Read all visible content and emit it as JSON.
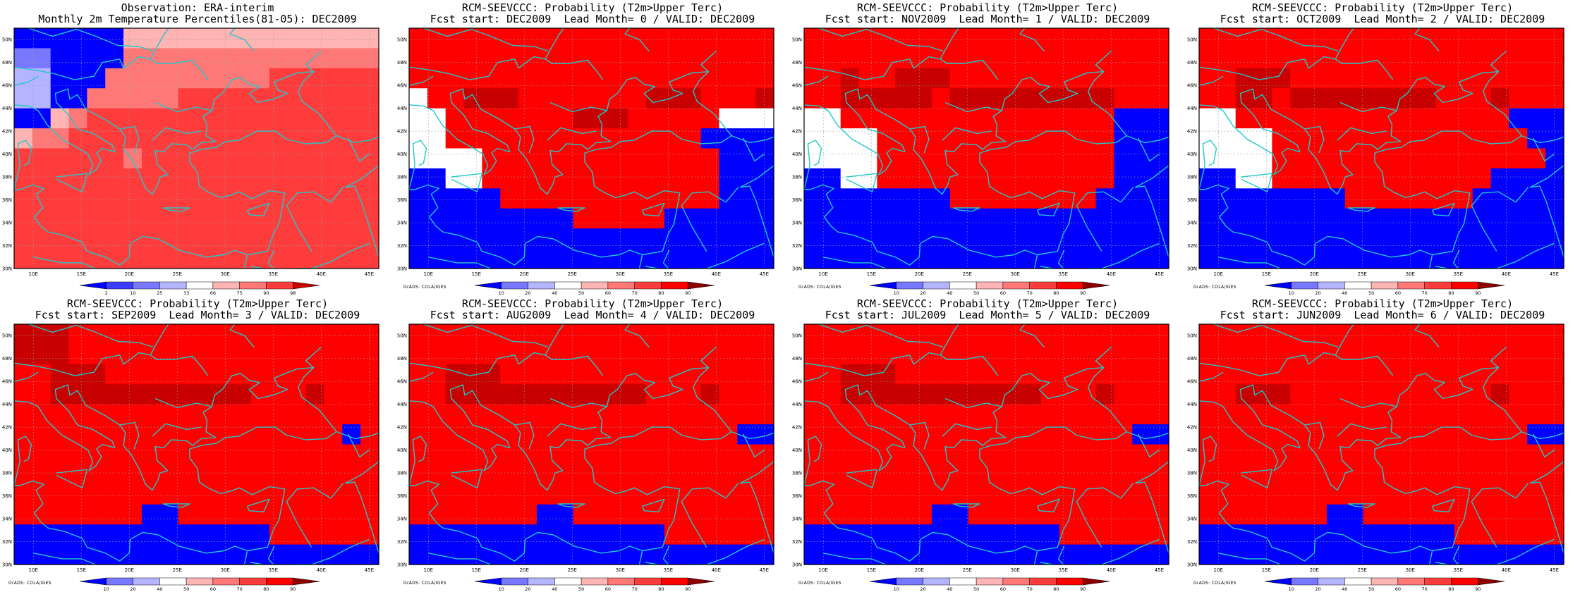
{
  "credit": "GrADS: COLA/IGES",
  "colors": {
    "coast": "#20c8c8",
    "grid": "#9a9a9a",
    "frame": "#000000",
    "bins": [
      "#0000ff",
      "#3c3cff",
      "#7878ff",
      "#b4b4ff",
      "#ffffff",
      "#ffb4b4",
      "#ff7878",
      "#ff3c3c",
      "#ff0000",
      "#c80000",
      "#8c0000"
    ]
  },
  "axes": {
    "x_ticks": [
      "10E",
      "15E",
      "20E",
      "25E",
      "30E",
      "35E",
      "40E",
      "45E"
    ],
    "y_ticks": [
      "50N",
      "48N",
      "46N",
      "44N",
      "42N",
      "40N",
      "38N",
      "36N",
      "34N",
      "32N",
      "30N"
    ],
    "lon_range": [
      8,
      46
    ],
    "lat_range": [
      30,
      51
    ]
  },
  "colorbars": {
    "percentile": [
      "2",
      "10",
      "25",
      "33",
      "66",
      "75",
      "90",
      "98"
    ],
    "probability": [
      "10",
      "20",
      "40",
      "50",
      "60",
      "70",
      "80",
      "90"
    ]
  },
  "panels": [
    {
      "title1": "Observation: ERA-interim",
      "title2": "Monthly 2m Temperature Percentiles(81-05): DEC2009",
      "colorbar": "percentile",
      "credit": false,
      "grid": [
        "00000055555555555555",
        "22000066666666666666",
        "33000666666666777777",
        "33006666677777777777",
        "00567777777777777777",
        "56677777777777777777",
        "77777767777777777777",
        "77777777777777777777",
        "77777777777777777777",
        "77777777777777777777",
        "77777777777777777777",
        "77777777777777777777"
      ]
    },
    {
      "title1": "RCM-SEEVCCC: Probability (T2m>Upper Terc)",
      "title2": "Fcst start: DEC2009  Lead Month= 0 / VALID: DEC2009",
      "colorbar": "probability",
      "credit": true,
      "grid": [
        "88888888888888888888",
        "88888888888888888888",
        "88888888888888888888",
        "48899988888889998889",
        "44888888899988888444",
        "44888888888888880000",
        "44448888888888888000",
        "00448888888888888000",
        "00000888888888888000",
        "00000000088888000000",
        "00000000000000000000",
        "00000000000000000000"
      ]
    },
    {
      "title1": "RCM-SEEVCCC: Probability (T2m>Upper Terc)",
      "title2": "Fcst start: NOV2009  Lead Month= 1 / VALID: DEC2009",
      "colorbar": "probability",
      "credit": true,
      "grid": [
        "88888888888888888888",
        "88888888888888888888",
        "88988999888888888888",
        "88999998999999999888",
        "44888888888888888000",
        "44448888888888888000",
        "44448888888888888000",
        "00448888888888888000",
        "00000000888888880000",
        "00000000000000000000",
        "00000000000000000000",
        "00000000000000000000"
      ]
    },
    {
      "title1": "RCM-SEEVCCC: Probability (T2m>Upper Terc)",
      "title2": "Fcst start: OCT2009  Lead Month= 2 / VALID: DEC2009",
      "colorbar": "probability",
      "credit": true,
      "grid": [
        "88888888888888888888",
        "88888888888888888888",
        "88999888888888888888",
        "88998999999998889888",
        "44888888888888888000",
        "44448888888888888800",
        "44448888888888888880",
        "00448888888888880000",
        "00000000888888800000",
        "00000000000000000000",
        "00000000000000000000",
        "00000000000000000000"
      ]
    },
    {
      "title1": "RCM-SEEVCCC: Probability (T2m>Upper Terc)",
      "title2": "Fcst start: SEP2009  Lead Month= 3 / VALID: DEC2009",
      "colorbar": "probability",
      "credit": true,
      "grid": [
        "99988888888888888888",
        "99988888888888888888",
        "88999888888888888888",
        "88999999999998889888",
        "88888888888888888888",
        "88888888888888888808",
        "88888888888888888888",
        "88888888888888888888",
        "88888888888888888888",
        "88888880088888888888",
        "00000000000000888888",
        "00000000000000000000"
      ]
    },
    {
      "title1": "RCM-SEEVCCC: Probability (T2m>Upper Terc)",
      "title2": "Fcst start: AUG2009  Lead Month= 4 / VALID: DEC2009",
      "colorbar": "probability",
      "credit": true,
      "grid": [
        "88888888888888888888",
        "88888888888888888888",
        "88999888888888888888",
        "88999999999998889888",
        "88888888888888888888",
        "88888888888888888800",
        "88888888888888888888",
        "88888888888888888888",
        "88888888888888888888",
        "88888880088888888888",
        "00000000000000888888",
        "00000000000000000000"
      ]
    },
    {
      "title1": "RCM-SEEVCCC: Probability (T2m>Upper Terc)",
      "title2": "Fcst start: JUL2009  Lead Month= 5 / VALID: DEC2009",
      "colorbar": "probability",
      "credit": true,
      "grid": [
        "88888888888888888888",
        "88888888888888888888",
        "88999888888888888888",
        "88999999999998889888",
        "88888888888888888888",
        "88888888888888888800",
        "88888888888888888888",
        "88888888888888888888",
        "88888888888888888888",
        "88888880088888888888",
        "00000000000000888888",
        "00000000000000000000"
      ]
    },
    {
      "title1": "RCM-SEEVCCC: Probability (T2m>Upper Terc)",
      "title2": "Fcst start: JUN2009  Lead Month= 6 / VALID: DEC2009",
      "colorbar": "probability",
      "credit": true,
      "grid": [
        "88888888888888888888",
        "88888888888888888888",
        "88888888888888888888",
        "88999888888888889888",
        "88888888888888888888",
        "88888888888888888800",
        "88888888888888888888",
        "88888888888888888888",
        "88888888888888888888",
        "88888880088888888888",
        "00000000000000888888",
        "00000000000000000000"
      ]
    }
  ]
}
